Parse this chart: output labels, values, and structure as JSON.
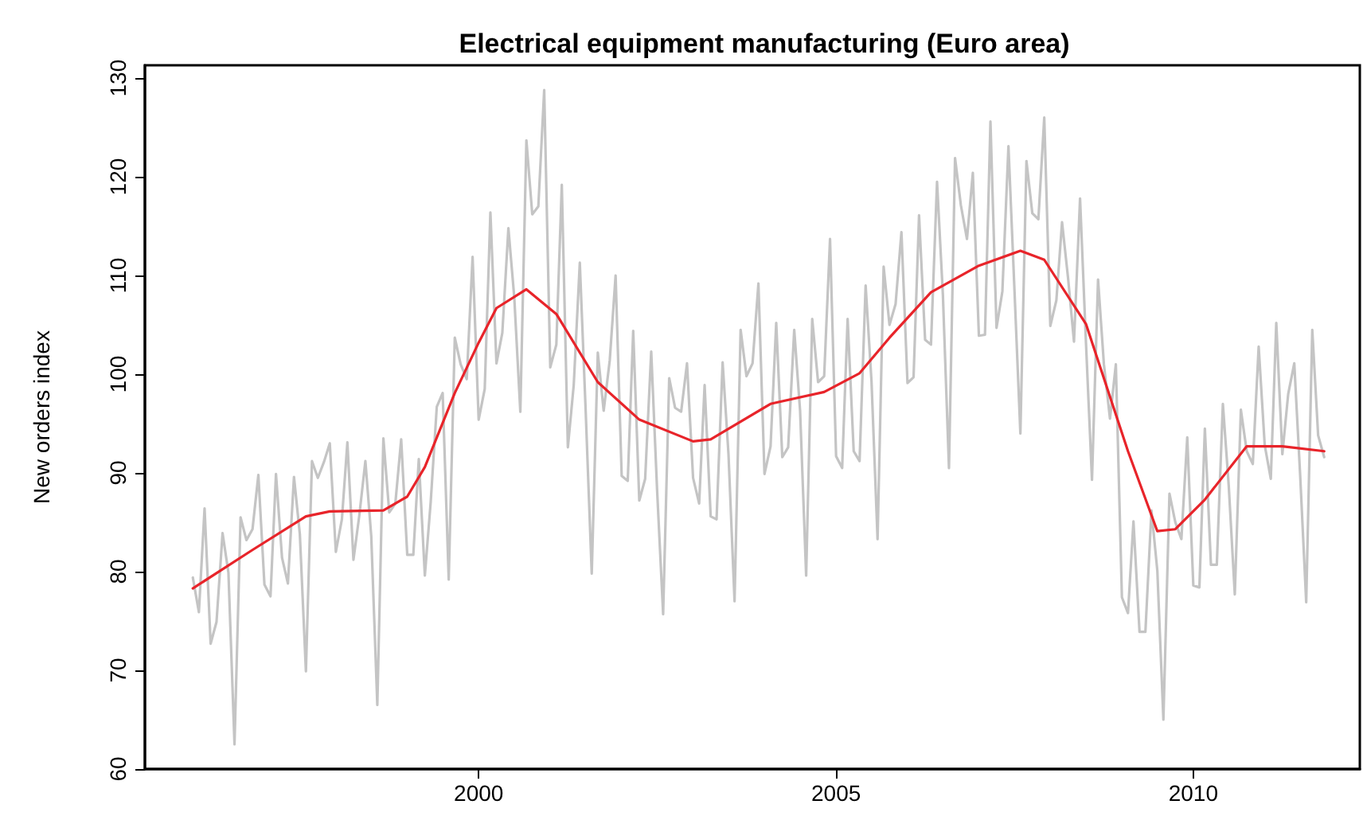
{
  "chart_data": {
    "type": "line",
    "title": "Electrical equipment manufacturing (Euro area)",
    "ylabel": "New orders index",
    "xlim": [
      "1995-05",
      "2012-05"
    ],
    "xticks": [
      "2000",
      "2005",
      "2010"
    ],
    "ylim": [
      60,
      131.3
    ],
    "yticks": [
      60,
      70,
      80,
      90,
      100,
      110,
      120,
      130
    ],
    "grid": false,
    "marker": "none",
    "line_style": "solid",
    "series": [
      {
        "color": "#c4c4c4",
        "x": [
          "1996-01",
          "1996-02",
          "1996-03",
          "1996-04",
          "1996-05",
          "1996-06",
          "1996-07",
          "1996-08",
          "1996-09",
          "1996-10",
          "1996-11",
          "1996-12",
          "1997-01",
          "1997-02",
          "1997-03",
          "1997-04",
          "1997-05",
          "1997-06",
          "1997-07",
          "1997-08",
          "1997-09",
          "1997-10",
          "1997-11",
          "1997-12",
          "1998-01",
          "1998-02",
          "1998-03",
          "1998-04",
          "1998-05",
          "1998-06",
          "1998-07",
          "1998-08",
          "1998-09",
          "1998-10",
          "1998-11",
          "1998-12",
          "1999-01",
          "1999-02",
          "1999-03",
          "1999-04",
          "1999-05",
          "1999-06",
          "1999-07",
          "1999-08",
          "1999-09",
          "1999-10",
          "1999-11",
          "1999-12",
          "2000-01",
          "2000-02",
          "2000-03",
          "2000-04",
          "2000-05",
          "2000-06",
          "2000-07",
          "2000-08",
          "2000-09",
          "2000-10",
          "2000-11",
          "2000-12",
          "2001-01",
          "2001-02",
          "2001-03",
          "2001-04",
          "2001-05",
          "2001-06",
          "2001-07",
          "2001-08",
          "2001-09",
          "2001-10",
          "2001-11",
          "2001-12",
          "2002-01",
          "2002-02",
          "2002-03",
          "2002-04",
          "2002-05",
          "2002-06",
          "2002-07",
          "2002-08",
          "2002-09",
          "2002-10",
          "2002-11",
          "2002-12",
          "2003-01",
          "2003-02",
          "2003-03",
          "2003-04",
          "2003-05",
          "2003-06",
          "2003-07",
          "2003-08",
          "2003-09",
          "2003-10",
          "2003-11",
          "2003-12",
          "2004-01",
          "2004-02",
          "2004-03",
          "2004-04",
          "2004-05",
          "2004-06",
          "2004-07",
          "2004-08",
          "2004-09",
          "2004-10",
          "2004-11",
          "2004-12",
          "2005-01",
          "2005-02",
          "2005-03",
          "2005-04",
          "2005-05",
          "2005-06",
          "2005-07",
          "2005-08",
          "2005-09",
          "2005-10",
          "2005-11",
          "2005-12",
          "2006-01",
          "2006-02",
          "2006-03",
          "2006-04",
          "2006-05",
          "2006-06",
          "2006-07",
          "2006-08",
          "2006-09",
          "2006-10",
          "2006-11",
          "2006-12",
          "2007-01",
          "2007-02",
          "2007-03",
          "2007-04",
          "2007-05",
          "2007-06",
          "2007-07",
          "2007-08",
          "2007-09",
          "2007-10",
          "2007-11",
          "2007-12",
          "2008-01",
          "2008-02",
          "2008-03",
          "2008-04",
          "2008-05",
          "2008-06",
          "2008-07",
          "2008-08",
          "2008-09",
          "2008-10",
          "2008-11",
          "2008-12",
          "2009-01",
          "2009-02",
          "2009-03",
          "2009-04",
          "2009-05",
          "2009-06",
          "2009-07",
          "2009-08",
          "2009-09",
          "2009-10",
          "2009-11",
          "2009-12",
          "2010-01",
          "2010-02",
          "2010-03",
          "2010-04",
          "2010-05",
          "2010-06",
          "2010-07",
          "2010-08",
          "2010-09",
          "2010-10",
          "2010-11",
          "2010-12",
          "2011-01",
          "2011-02",
          "2011-03",
          "2011-04",
          "2011-05",
          "2011-06",
          "2011-07",
          "2011-08",
          "2011-09",
          "2011-10",
          "2011-11"
        ],
        "values": [
          79.4,
          75.9,
          86.4,
          72.7,
          74.9,
          83.9,
          79.9,
          62.5,
          85.5,
          83.2,
          84.3,
          89.8,
          78.7,
          77.5,
          89.9,
          81.4,
          78.8,
          89.6,
          83.8,
          69.9,
          91.2,
          89.5,
          91.1,
          93.0,
          82.0,
          85.3,
          93.1,
          81.2,
          85.7,
          91.2,
          83.6,
          66.5,
          93.5,
          86.0,
          86.9,
          93.4,
          81.7,
          81.7,
          91.4,
          79.6,
          87.1,
          96.7,
          98.1,
          79.2,
          103.7,
          101.0,
          99.5,
          111.9,
          95.4,
          98.5,
          116.4,
          101.1,
          104.2,
          114.8,
          107.8,
          96.2,
          123.7,
          116.2,
          117.0,
          128.8,
          100.7,
          103.0,
          119.2,
          92.6,
          98.9,
          111.3,
          96.3,
          79.8,
          102.2,
          96.3,
          101.4,
          110.0,
          89.7,
          89.2,
          104.4,
          87.2,
          89.4,
          102.3,
          88.3,
          75.7,
          99.6,
          96.6,
          96.2,
          101.1,
          89.5,
          86.9,
          98.9,
          85.6,
          85.3,
          101.2,
          91.9,
          77.0,
          104.5,
          99.8,
          101.1,
          109.2,
          89.9,
          92.7,
          105.2,
          91.6,
          92.6,
          104.5,
          96.3,
          79.6,
          105.6,
          99.2,
          99.8,
          113.7,
          91.7,
          90.5,
          105.6,
          92.2,
          91.2,
          109.0,
          99.3,
          83.3,
          110.9,
          105.0,
          107.1,
          114.4,
          99.1,
          99.7,
          116.1,
          103.5,
          103.0,
          119.5,
          108.0,
          90.5,
          121.9,
          117.1,
          113.7,
          120.4,
          103.9,
          104.0,
          125.6,
          104.7,
          108.4,
          123.1,
          108.9,
          94.0,
          121.6,
          116.3,
          115.7,
          126.0,
          104.9,
          107.5,
          115.4,
          109.7,
          103.3,
          117.8,
          103.3,
          89.3,
          109.6,
          101.0,
          95.5,
          101.0,
          77.4,
          75.8,
          85.1,
          73.9,
          73.9,
          86.2,
          80.1,
          65.0,
          87.9,
          85.0,
          83.3,
          93.6,
          78.6,
          78.4,
          94.5,
          80.7,
          80.7,
          97.0,
          88.7,
          77.7,
          96.4,
          92.2,
          90.9,
          102.8,
          92.8,
          89.4,
          105.2,
          91.9,
          98.0,
          101.1,
          89.8,
          76.9,
          104.5,
          93.8,
          91.6
        ]
      },
      {
        "color": "#e8242a",
        "x": [
          "1996-01",
          "1996-11",
          "1997-08",
          "1997-12",
          "1998-09",
          "1999-01",
          "1999-04",
          "1999-09",
          "2000-01",
          "2000-04",
          "2000-09",
          "2001-02",
          "2001-09",
          "2002-04",
          "2003-01",
          "2003-04",
          "2004-02",
          "2004-11",
          "2005-05",
          "2005-10",
          "2006-05",
          "2007-01",
          "2007-08",
          "2007-12",
          "2008-07",
          "2009-02",
          "2009-07",
          "2009-10",
          "2010-03",
          "2010-10",
          "2011-04",
          "2011-11"
        ],
        "values": [
          78.3,
          82.2,
          85.6,
          86.1,
          86.2,
          87.6,
          90.6,
          98.1,
          103.2,
          106.7,
          108.6,
          106.1,
          99.2,
          95.4,
          93.2,
          93.4,
          97.0,
          98.2,
          100.1,
          103.7,
          108.3,
          111.0,
          112.5,
          111.6,
          105.1,
          92.2,
          84.1,
          84.3,
          87.3,
          92.7,
          92.7,
          92.2
        ]
      }
    ]
  }
}
